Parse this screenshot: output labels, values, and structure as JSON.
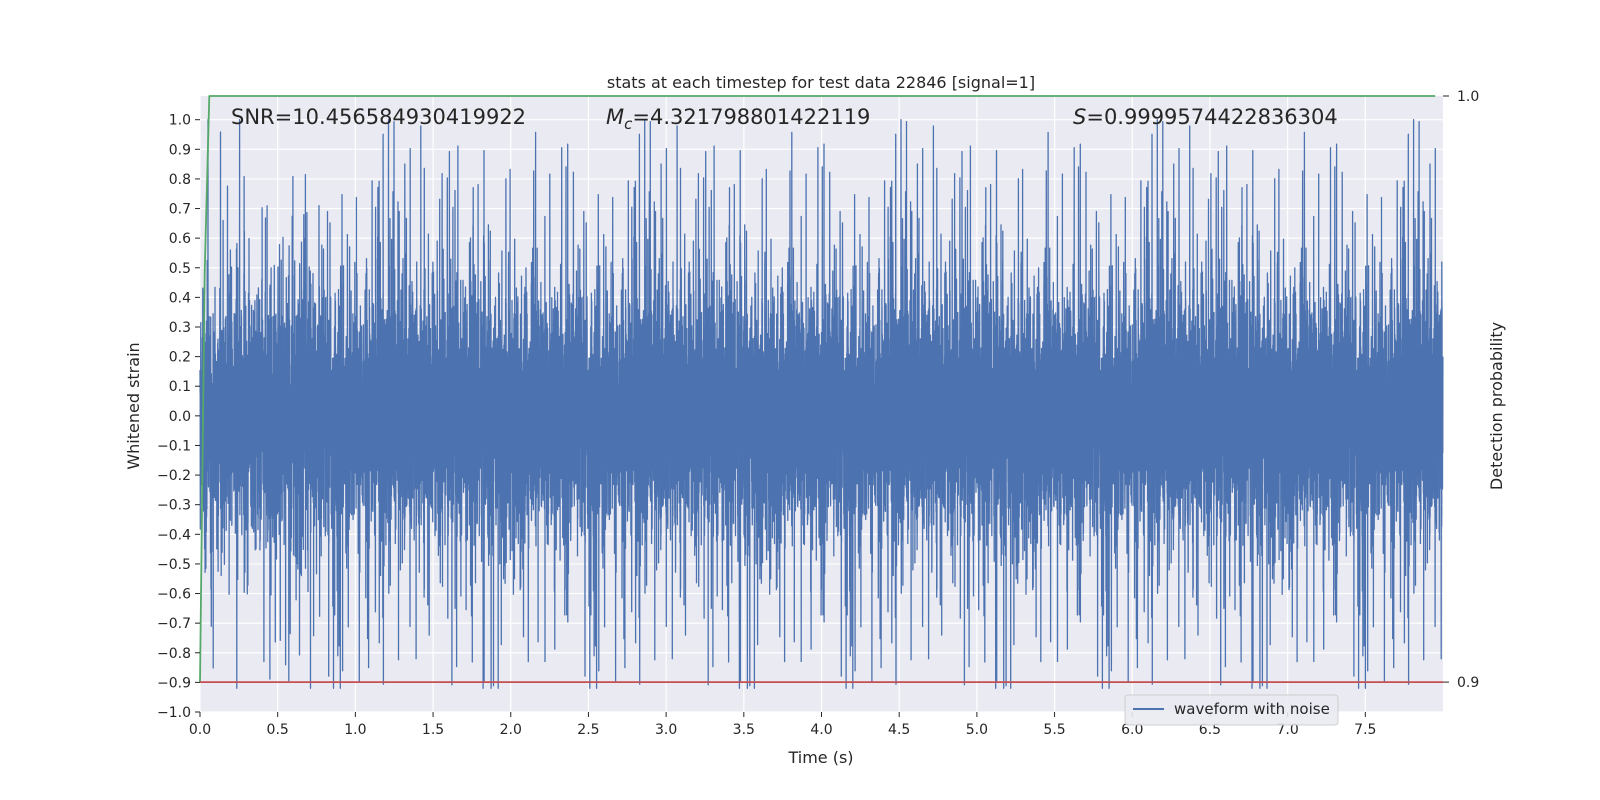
{
  "chart_data": {
    "type": "line",
    "title": "stats at each timestep for test data 22846 [signal=1]",
    "xlabel": "Time (s)",
    "ylabel": "Whitened strain",
    "y2label": "Detection probability",
    "xlim": [
      0.0,
      8.0
    ],
    "ylim": [
      -1.0,
      1.08
    ],
    "y2lim": [
      0.8949,
      1.0
    ],
    "x_ticks": [
      "0.0",
      "0.5",
      "1.0",
      "1.5",
      "2.0",
      "2.5",
      "3.0",
      "3.5",
      "4.0",
      "4.5",
      "5.0",
      "5.5",
      "6.0",
      "6.5",
      "7.0",
      "7.5"
    ],
    "y_ticks": [
      "−1.0",
      "−0.9",
      "−0.8",
      "−0.7",
      "−0.6",
      "−0.5",
      "−0.4",
      "−0.3",
      "−0.2",
      "−0.1",
      "0.0",
      "0.1",
      "0.2",
      "0.3",
      "0.4",
      "0.5",
      "0.6",
      "0.7",
      "0.8",
      "0.9",
      "1.0"
    ],
    "y2_ticks": [
      "0.9",
      "1.0"
    ],
    "grid": true,
    "legend_position": "lower-right",
    "annotations": {
      "snr_label": "SNR=10.456584930419922",
      "mc_symbol": "M",
      "mc_sub": "c",
      "mc_value": "=4.321798801422119",
      "s_symbol": "S",
      "s_value": "=0.9999574422836304"
    },
    "series": [
      {
        "name": "waveform with noise",
        "axis": "left",
        "color": "#4c72b0",
        "kind": "noise",
        "sample_rate_hz": 2048,
        "x_range": [
          0.0,
          8.0
        ],
        "amplitude_core": 0.28,
        "max_abs": 1.0
      },
      {
        "axis": "right",
        "color": "#55a868",
        "x": [
          0.0,
          0.03,
          0.06,
          7.95
        ],
        "y": [
          0.9,
          0.97,
          1.0,
          1.0
        ]
      },
      {
        "axis": "right",
        "color": "#c44e52",
        "x": [
          0.0,
          8.0
        ],
        "y": [
          0.9,
          0.9
        ]
      }
    ],
    "colors": {
      "plot_bg": "#eaeaf2",
      "grid": "#ffffff",
      "text": "#262626"
    }
  }
}
